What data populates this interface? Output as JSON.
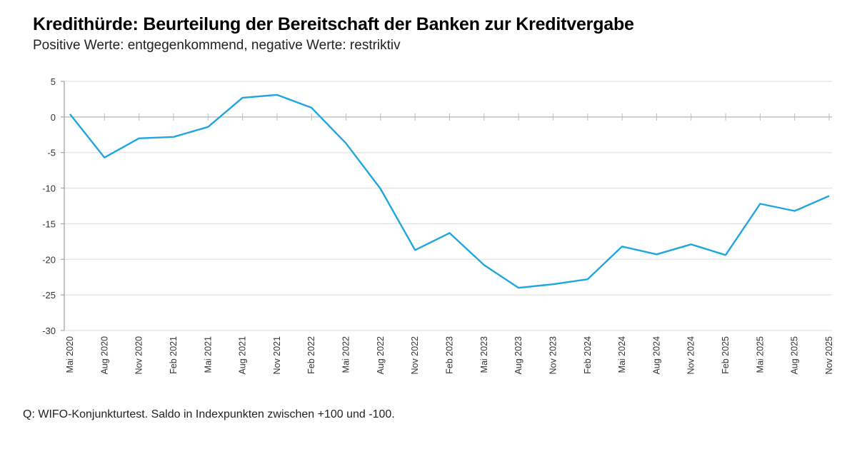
{
  "header": {
    "title": "Kredithürde: Beurteilung der Bereitschaft der Banken zur Kreditvergabe",
    "subtitle": "Positive Werte: entgegenkommend, negative Werte: restriktiv"
  },
  "footer": {
    "source": "Q: WIFO-Konjunkturtest. Saldo in Indexpunkten zwischen +100 und -100."
  },
  "chart_data": {
    "type": "line",
    "title": "Kredithürde: Beurteilung der Bereitschaft der Banken zur Kreditvergabe",
    "subtitle": "Positive Werte: entgegenkommend, negative Werte: restriktiv",
    "xlabel": "",
    "ylabel": "",
    "ylim": [
      -30,
      5
    ],
    "yticks": [
      5,
      0,
      -5,
      -10,
      -15,
      -20,
      -25,
      -30
    ],
    "grid": true,
    "legend": "none",
    "categories": [
      "Mai 2020",
      "Aug 2020",
      "Nov 2020",
      "Feb 2021",
      "Mai 2021",
      "Aug 2021",
      "Nov 2021",
      "Feb 2022",
      "Mai 2022",
      "Aug 2022",
      "Nov 2022",
      "Feb 2023",
      "Mai 2023",
      "Aug 2023",
      "Nov 2023",
      "Feb 2024",
      "Mai 2024",
      "Aug 2024",
      "Nov 2024",
      "Feb 2025",
      "Mai 2025",
      "Aug 2025",
      "Nov 2025"
    ],
    "series": [
      {
        "name": "Kredithürde",
        "color": "#1fa6e0",
        "values": [
          0.4,
          -5.7,
          -3.0,
          -2.8,
          -1.4,
          2.7,
          3.1,
          1.3,
          -3.7,
          -10.1,
          -18.7,
          -16.3,
          -20.8,
          -24.0,
          -23.5,
          -22.8,
          -18.2,
          -19.3,
          -17.9,
          -19.4,
          -12.2,
          -13.2,
          -11.1
        ]
      }
    ]
  }
}
